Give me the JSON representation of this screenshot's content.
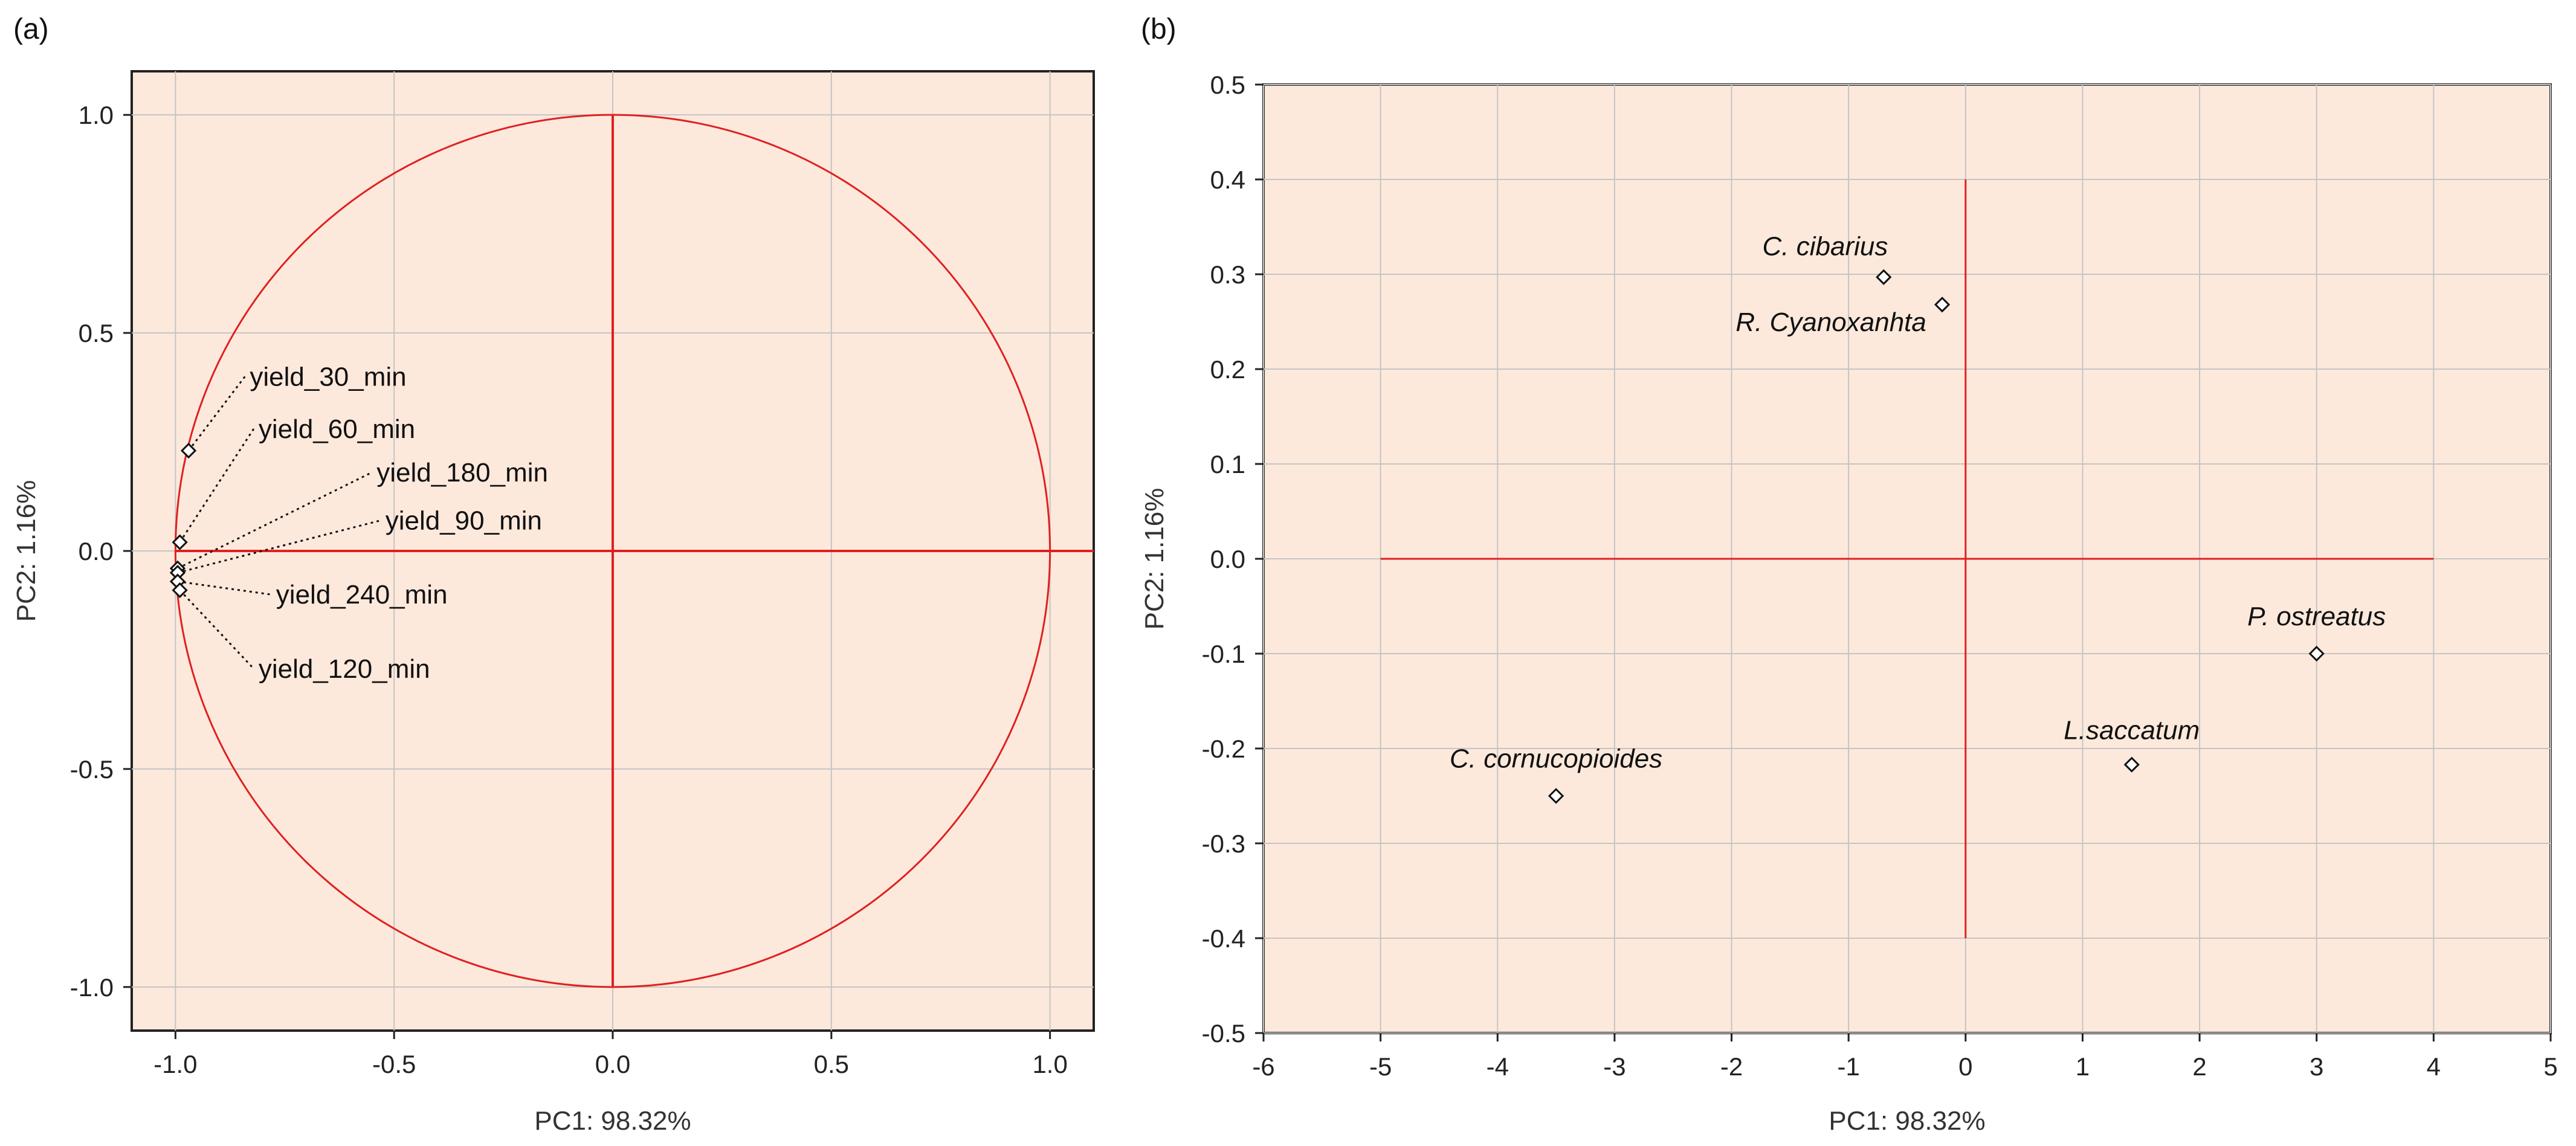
{
  "chart_data": [
    {
      "panel": "(a)",
      "type": "scatter",
      "xlabel": "PC1: 98.32%",
      "ylabel": "PC2: 1.16%",
      "xlim": [
        -1.1,
        1.1
      ],
      "ylim": [
        -1.1,
        1.1
      ],
      "xticks": [
        -1.0,
        -0.5,
        0.0,
        0.5,
        1.0
      ],
      "yticks": [
        -1.0,
        -0.5,
        0.0,
        0.5,
        1.0
      ],
      "xtick_labels": [
        "-1.0",
        "-0.5",
        "0.0",
        "0.5",
        "1.0"
      ],
      "ytick_labels": [
        "-1.0",
        "-0.5",
        "0.0",
        "0.5",
        "1.0"
      ],
      "grid": true,
      "background": "#fde9dc",
      "line_color": "#e02020",
      "unit_circle": true,
      "reference_lines": {
        "x": [
          -1.0,
          1.0
        ],
        "y": [
          -1.0,
          1.0
        ]
      },
      "points": [
        {
          "label": "yield_30_min",
          "x": -0.97,
          "y": 0.23,
          "label_x": -0.83,
          "label_y": 0.4
        },
        {
          "label": "yield_60_min",
          "x": -0.99,
          "y": 0.02,
          "label_x": -0.81,
          "label_y": 0.28
        },
        {
          "label": "yield_180_min",
          "x": -0.995,
          "y": -0.04,
          "label_x": -0.54,
          "label_y": 0.18
        },
        {
          "label": "yield_90_min",
          "x": -0.995,
          "y": -0.05,
          "label_x": -0.52,
          "label_y": 0.07
        },
        {
          "label": "yield_240_min",
          "x": -0.995,
          "y": -0.07,
          "label_x": -0.77,
          "label_y": -0.1
        },
        {
          "label": "yield_120_min",
          "x": -0.99,
          "y": -0.09,
          "label_x": -0.81,
          "label_y": -0.27
        }
      ]
    },
    {
      "panel": "(b)",
      "type": "scatter",
      "xlabel": "PC1: 98.32%",
      "ylabel": "PC2: 1.16%",
      "xlim": [
        -6,
        5
      ],
      "ylim": [
        -0.5,
        0.5
      ],
      "xticks": [
        -6,
        -5,
        -4,
        -3,
        -2,
        -1,
        0,
        1,
        2,
        3,
        4,
        5
      ],
      "yticks": [
        -0.5,
        -0.4,
        -0.3,
        -0.2,
        -0.1,
        0.0,
        0.1,
        0.2,
        0.3,
        0.4,
        0.5
      ],
      "xtick_labels": [
        "-6",
        "-5",
        "-4",
        "-3",
        "-2",
        "-1",
        "0",
        "1",
        "2",
        "3",
        "4",
        "5"
      ],
      "ytick_labels": [
        "-0.5",
        "-0.4",
        "-0.3",
        "-0.2",
        "-0.1",
        "0.0",
        "0.1",
        "0.2",
        "0.3",
        "0.4",
        "0.5"
      ],
      "grid": true,
      "background": "#fde9dc",
      "line_color": "#e02020",
      "reference_lines": {
        "x": [
          -5,
          4
        ],
        "y": [
          -0.4,
          0.4
        ]
      },
      "points": [
        {
          "label": "C. cibarius",
          "x": -0.7,
          "y": 0.297,
          "label_x": -1.2,
          "label_y": 0.32
        },
        {
          "label": "R. Cyanoxanhta",
          "x": -0.2,
          "y": 0.268,
          "label_x": -1.15,
          "label_y": 0.24
        },
        {
          "label": "P. ostreatus",
          "x": 3.0,
          "y": -0.1,
          "label_x": 3.0,
          "label_y": -0.07
        },
        {
          "label": "L.saccatum",
          "x": 1.42,
          "y": -0.217,
          "label_x": 1.42,
          "label_y": -0.19
        },
        {
          "label": "C. cornucopioides",
          "x": -3.5,
          "y": -0.25,
          "label_x": -3.5,
          "label_y": -0.22
        }
      ]
    }
  ]
}
